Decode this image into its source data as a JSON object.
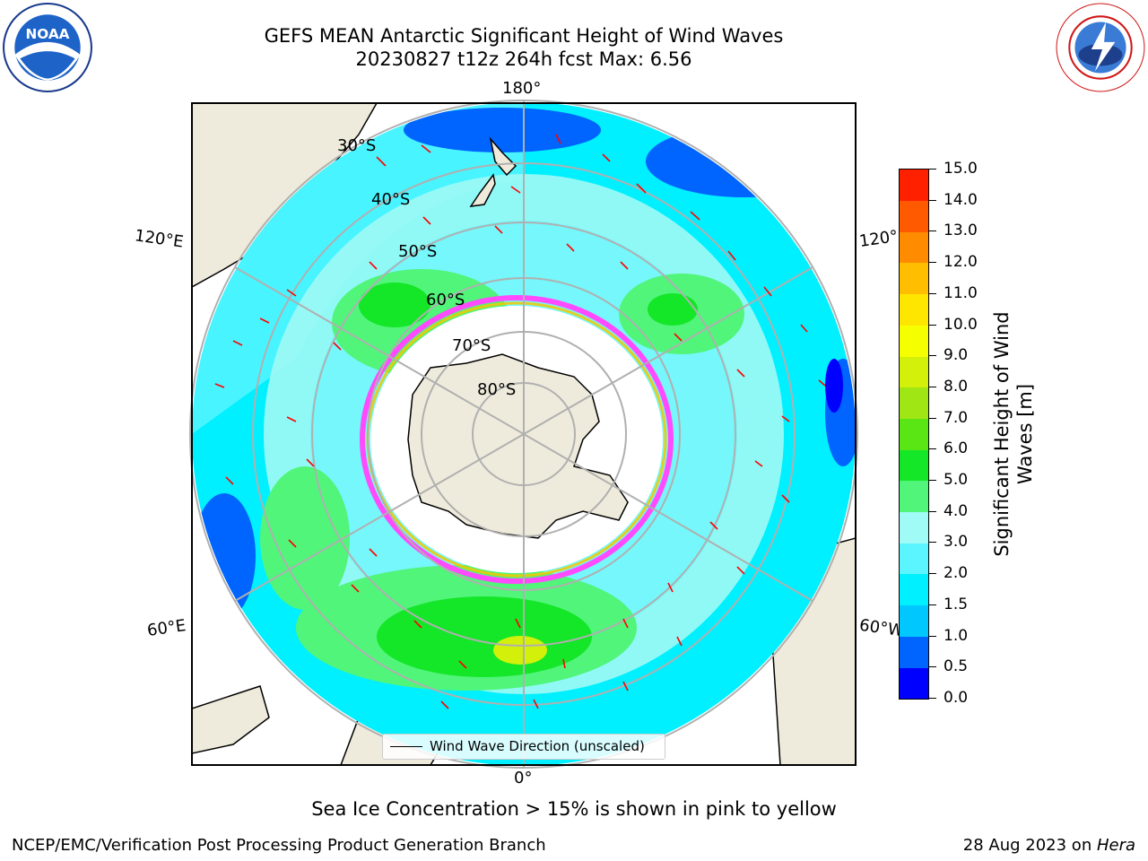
{
  "title": {
    "line1": "GEFS MEAN Antarctic Significant Height of Wind Waves",
    "line2": "20230827 t12z 264h fcst   Max: 6.56"
  },
  "logos": {
    "left": "noaa-logo",
    "right": "national-weather-service-logo"
  },
  "map": {
    "projection": "south-polar-stereographic",
    "lon_labels": {
      "top": "180°",
      "bottom": "0°",
      "left_upper": "120°E",
      "left_lower": "60°E",
      "right_upper": "120°",
      "right_lower": "60°W"
    },
    "lat_labels": [
      "30°S",
      "40°S",
      "50°S",
      "60°S",
      "70°S",
      "80°S"
    ]
  },
  "colorbar": {
    "title": "Significant Height of Wind Waves [m]",
    "ticks": [
      "0.0",
      "0.5",
      "1.0",
      "1.5",
      "2.0",
      "3.0",
      "4.0",
      "5.0",
      "6.0",
      "7.0",
      "8.0",
      "9.0",
      "10.0",
      "11.0",
      "12.0",
      "13.0",
      "14.0",
      "15.0"
    ],
    "colors": [
      "#0000ff",
      "#0064ff",
      "#00c8ff",
      "#00f0ff",
      "#5af5ff",
      "#a0faf5",
      "#50f57a",
      "#14e628",
      "#5ae614",
      "#a0e614",
      "#d2f00a",
      "#f5ff00",
      "#ffe600",
      "#ffbe00",
      "#ff8c00",
      "#ff5a00",
      "#ff2000"
    ]
  },
  "legend": {
    "label": "Wind Wave Direction (unscaled)"
  },
  "note": "Sea Ice Concentration > 15% is shown in pink to yellow",
  "footer": {
    "left": "NCEP/EMC/Verification Post Processing Product Generation Branch",
    "right_prefix": "28 Aug 2023 on ",
    "right_host": "Hera"
  }
}
